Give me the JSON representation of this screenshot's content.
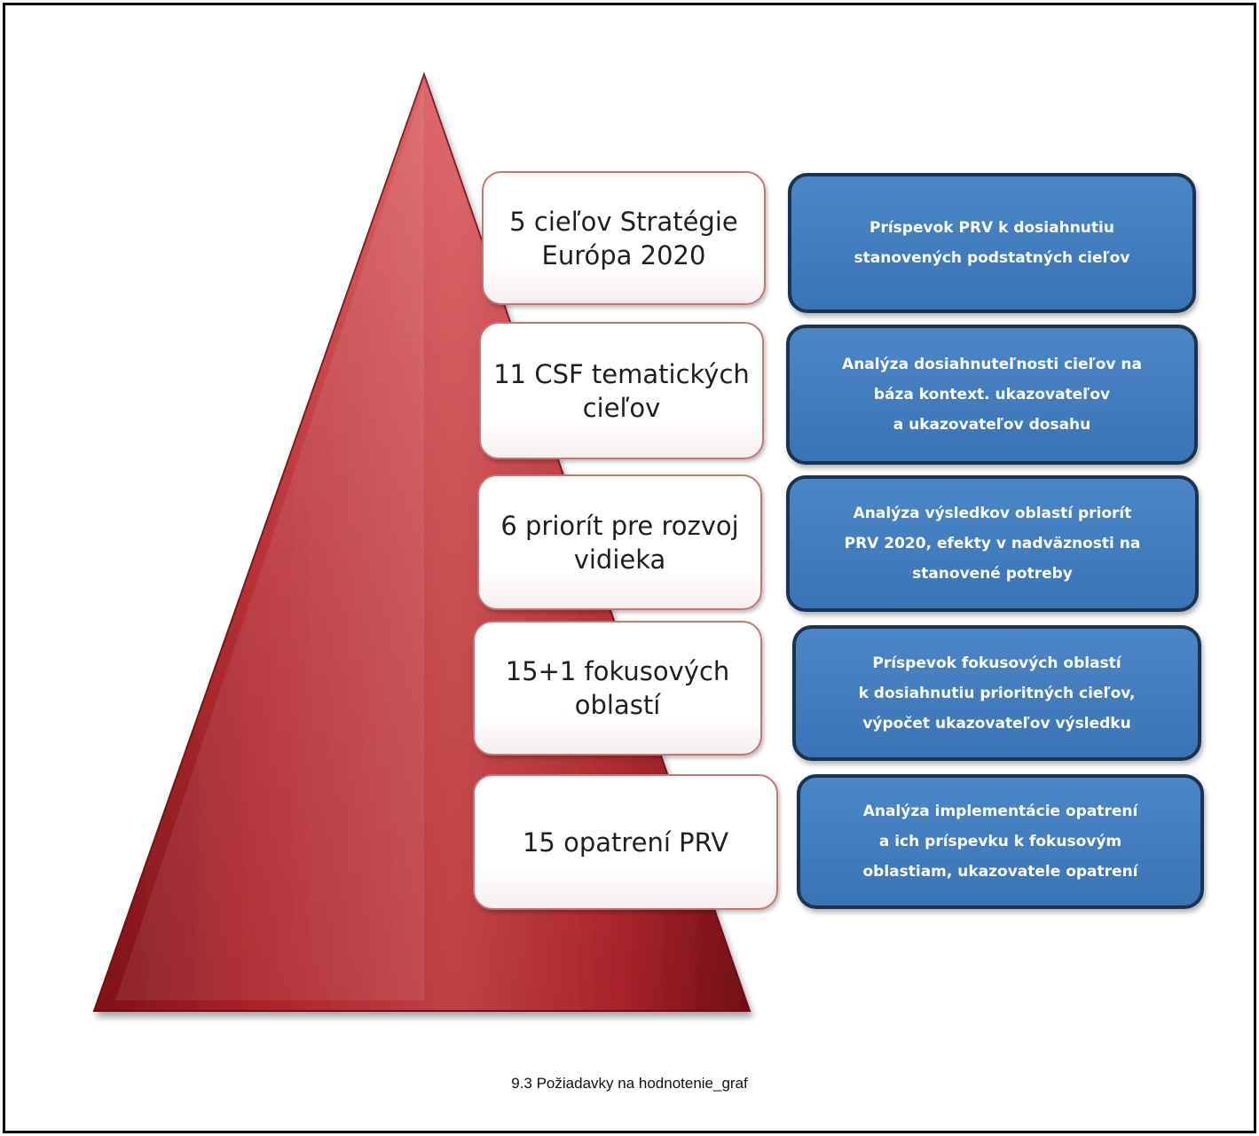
{
  "diagram": {
    "levels": [
      {
        "label": "5 cieľov Stratégie\nEurópa 2020",
        "description": "Príspevok PRV k dosiahnutiu\nstanovených podstatných cieľov"
      },
      {
        "label": "11 CSF tematických\ncieľov",
        "description": "Analýza dosiahnuteľnosti cieľov na\nbáza kontext. ukazovateľov\na ukazovateľov dosahu"
      },
      {
        "label": "6 priorít pre rozvoj\nvidieka",
        "description": "Analýza výsledkov oblastí priorít\nPRV 2020, efekty v nadväznosti na\nstanovené potreby"
      },
      {
        "label": "15+1 fokusových\noblastí",
        "description": "Príspevok fokusových oblastí\nk dosiahnutiu prioritných cieľov,\nvýpočet ukazovateľov výsledku"
      },
      {
        "label": "15 opatrení PRV",
        "description": "Analýza implementácie opatrení\na ich príspevku k fokusovým\noblastiam, ukazovatele opatrení"
      }
    ],
    "colors": {
      "pyramid": "#c0272d",
      "label_border": "#c97373",
      "description_fill": "#3f7abd",
      "description_border": "#1b3350"
    }
  },
  "caption": "9.3 Požiadavky na hodnotenie_graf"
}
